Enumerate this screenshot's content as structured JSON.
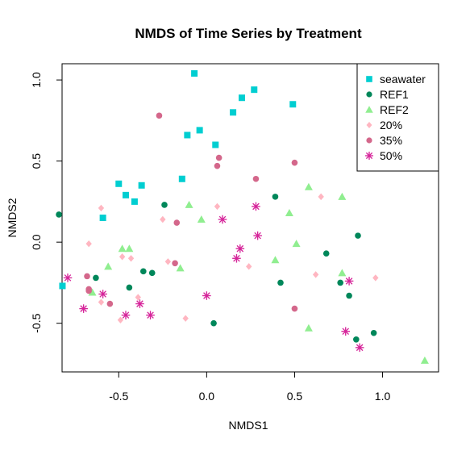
{
  "chart_data": {
    "type": "scatter",
    "title": "NMDS of Time Series by Treatment",
    "xlabel": "NMDS1",
    "ylabel": "NMDS2",
    "xlim": [
      -0.9,
      1.3
    ],
    "ylim": [
      -0.8,
      1.1
    ],
    "xticks": [
      -0.5,
      0.0,
      0.5,
      1.0
    ],
    "yticks": [
      -0.5,
      0.0,
      0.5,
      1.0
    ],
    "xtick_labels": [
      "-0.5",
      "0.0",
      "0.5",
      "1.0"
    ],
    "ytick_labels": [
      "-0.5",
      "0.0",
      "0.5",
      "1.0"
    ],
    "grid": false,
    "legend_position": "top-right",
    "series": [
      {
        "name": "seawater",
        "color": "#00CED1",
        "marker": "square",
        "points": [
          [
            -0.07,
            1.04
          ],
          [
            0.49,
            0.85
          ],
          [
            0.2,
            0.89
          ],
          [
            0.27,
            0.94
          ],
          [
            0.15,
            0.8
          ],
          [
            -0.04,
            0.69
          ],
          [
            -0.11,
            0.66
          ],
          [
            0.05,
            0.6
          ],
          [
            -0.14,
            0.39
          ],
          [
            -0.5,
            0.36
          ],
          [
            -0.37,
            0.35
          ],
          [
            -0.46,
            0.29
          ],
          [
            -0.41,
            0.25
          ],
          [
            -0.59,
            0.15
          ],
          [
            -0.82,
            -0.27
          ]
        ]
      },
      {
        "name": "REF1",
        "color": "#00875A",
        "marker": "circle",
        "points": [
          [
            -0.84,
            0.17
          ],
          [
            -0.24,
            0.23
          ],
          [
            0.39,
            0.28
          ],
          [
            0.86,
            0.04
          ],
          [
            0.68,
            -0.07
          ],
          [
            -0.36,
            -0.18
          ],
          [
            -0.31,
            -0.19
          ],
          [
            -0.63,
            -0.22
          ],
          [
            -0.44,
            -0.28
          ],
          [
            0.42,
            -0.25
          ],
          [
            0.76,
            -0.25
          ],
          [
            0.81,
            -0.33
          ],
          [
            0.04,
            -0.5
          ],
          [
            0.85,
            -0.6
          ],
          [
            0.95,
            -0.56
          ]
        ]
      },
      {
        "name": "REF2",
        "color": "#90EE90",
        "marker": "triangle",
        "points": [
          [
            -0.1,
            0.23
          ],
          [
            -0.03,
            0.14
          ],
          [
            0.58,
            0.34
          ],
          [
            0.77,
            0.28
          ],
          [
            0.47,
            0.18
          ],
          [
            0.51,
            -0.01
          ],
          [
            -0.48,
            -0.04
          ],
          [
            -0.44,
            -0.04
          ],
          [
            -0.56,
            -0.15
          ],
          [
            -0.15,
            -0.16
          ],
          [
            0.39,
            -0.11
          ],
          [
            0.77,
            -0.19
          ],
          [
            -0.65,
            -0.31
          ],
          [
            0.58,
            -0.53
          ],
          [
            1.24,
            -0.73
          ]
        ]
      },
      {
        "name": "20%",
        "color": "#FFB6C1",
        "marker": "diamond",
        "points": [
          [
            -0.6,
            0.21
          ],
          [
            0.65,
            0.28
          ],
          [
            0.06,
            0.22
          ],
          [
            -0.25,
            0.14
          ],
          [
            -0.67,
            -0.01
          ],
          [
            -0.48,
            -0.09
          ],
          [
            -0.43,
            -0.1
          ],
          [
            -0.22,
            -0.12
          ],
          [
            0.24,
            -0.15
          ],
          [
            0.62,
            -0.2
          ],
          [
            0.96,
            -0.22
          ],
          [
            -0.6,
            -0.37
          ],
          [
            -0.39,
            -0.34
          ],
          [
            -0.12,
            -0.47
          ],
          [
            -0.49,
            -0.48
          ]
        ]
      },
      {
        "name": "35%",
        "color": "#D4678B",
        "marker": "circle",
        "points": [
          [
            -0.27,
            0.78
          ],
          [
            0.07,
            0.52
          ],
          [
            0.06,
            0.47
          ],
          [
            0.5,
            0.49
          ],
          [
            0.28,
            0.39
          ],
          [
            -0.17,
            0.12
          ],
          [
            -0.68,
            -0.21
          ],
          [
            -0.18,
            -0.13
          ],
          [
            -0.67,
            -0.29
          ],
          [
            -0.67,
            -0.3
          ],
          [
            -0.55,
            -0.38
          ],
          [
            0.5,
            -0.41
          ]
        ]
      },
      {
        "name": "50%",
        "color": "#D6259A",
        "marker": "asterisk",
        "points": [
          [
            0.28,
            0.22
          ],
          [
            0.09,
            0.14
          ],
          [
            0.29,
            0.04
          ],
          [
            0.19,
            -0.04
          ],
          [
            0.17,
            -0.1
          ],
          [
            -0.79,
            -0.22
          ],
          [
            -0.59,
            -0.32
          ],
          [
            0.81,
            -0.24
          ],
          [
            0.0,
            -0.33
          ],
          [
            -0.7,
            -0.41
          ],
          [
            -0.38,
            -0.38
          ],
          [
            -0.46,
            -0.45
          ],
          [
            -0.32,
            -0.45
          ],
          [
            0.79,
            -0.55
          ],
          [
            0.87,
            -0.65
          ]
        ]
      }
    ]
  }
}
